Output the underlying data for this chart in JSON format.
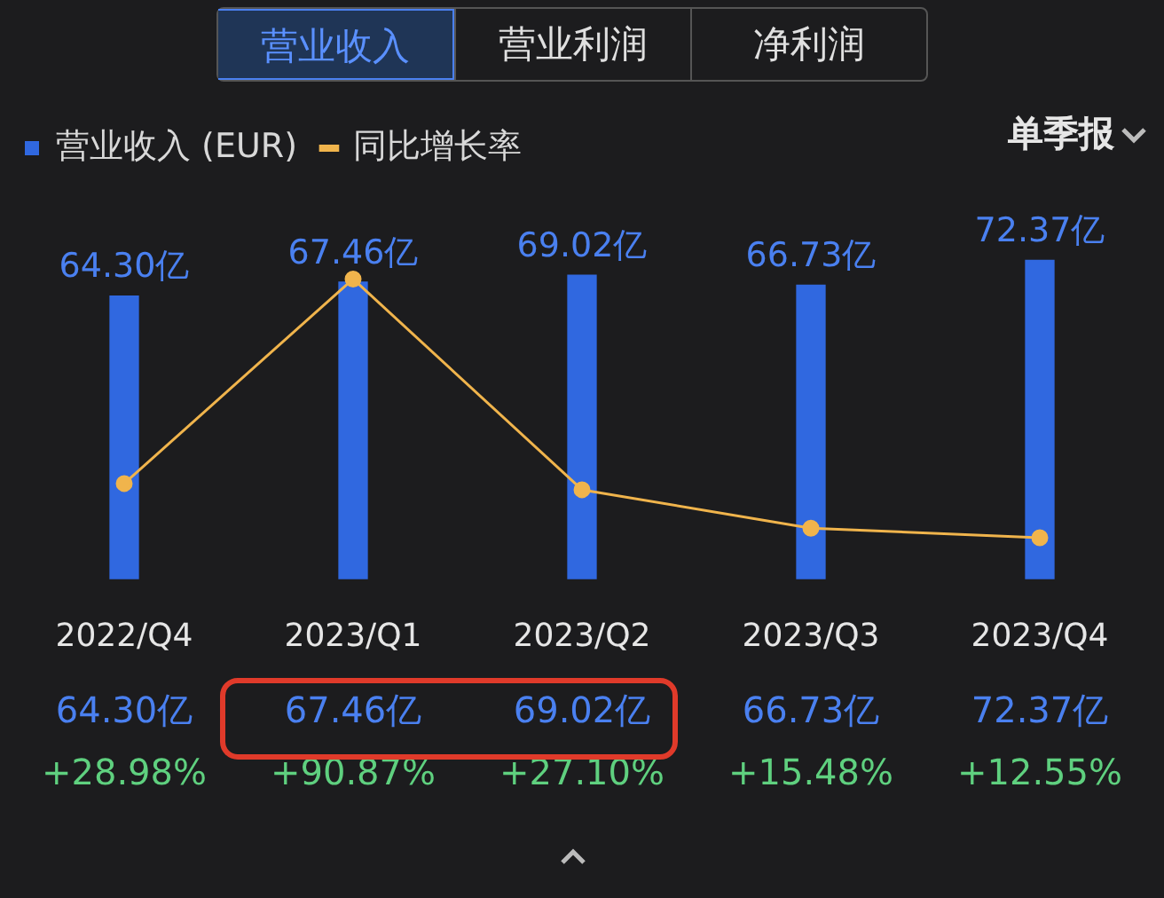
{
  "chart_data": {
    "type": "bar",
    "categories": [
      "2022/Q4",
      "2023/Q1",
      "2023/Q2",
      "2023/Q3",
      "2023/Q4"
    ],
    "series": [
      {
        "name": "营业收入 (EUR)",
        "color": "#3068e0",
        "values": [
          64.3,
          67.46,
          69.02,
          66.73,
          72.37
        ],
        "value_labels": [
          "64.30亿",
          "67.46亿",
          "69.02亿",
          "66.73亿",
          "72.37亿"
        ]
      },
      {
        "name": "同比增长率",
        "type": "line",
        "axis": "y2",
        "color": "#f0b44c",
        "values": [
          28.98,
          90.87,
          27.1,
          15.48,
          12.55
        ],
        "value_labels": [
          "+28.98%",
          "+90.87%",
          "+27.10%",
          "+15.48%",
          "+12.55%"
        ]
      }
    ],
    "tick_labels": "x",
    "legend": "top left",
    "marker": "circle",
    "line_style": "solid",
    "annotations": [
      "营业收入",
      "营业利润",
      "净利润",
      "单季报"
    ]
  }
}
